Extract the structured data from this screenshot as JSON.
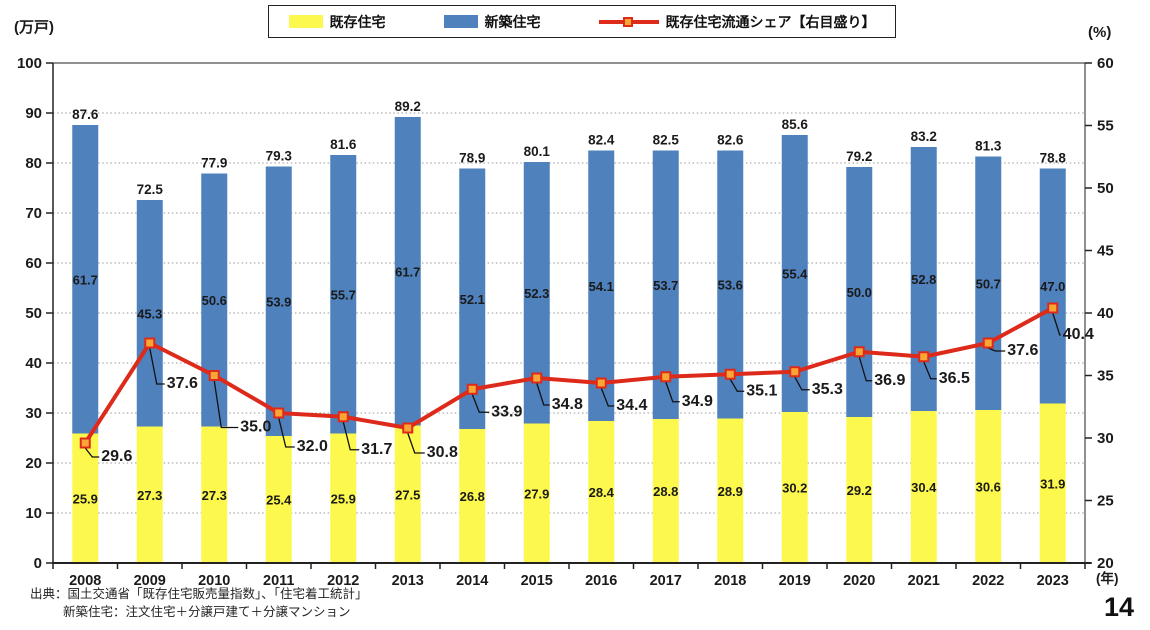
{
  "page_number": "14",
  "axis": {
    "left_unit": "(万戸)",
    "right_unit": "(%)",
    "year_unit": "(年)"
  },
  "legend": {
    "existing": "既存住宅",
    "new": "新築住宅",
    "share": "既存住宅流通シェア【右目盛り】"
  },
  "source": {
    "line1": "出典：国土交通省「既存住宅販売量指数」、「住宅着工統計」",
    "line2": "新築住宅：注文住宅＋分譲戸建て＋分譲マンション"
  },
  "colors": {
    "existing": "#fdf84e",
    "new": "#4f81bd",
    "share_line": "#dd2a1b",
    "marker_fill": "#faa634",
    "share_label": "#dd2a1b",
    "grid": "#9a9a9a",
    "axis": "#222222"
  },
  "chart_data": {
    "type": "bar",
    "stacked": true,
    "categories": [
      "2008",
      "2009",
      "2010",
      "2011",
      "2012",
      "2013",
      "2014",
      "2015",
      "2016",
      "2017",
      "2018",
      "2019",
      "2020",
      "2021",
      "2022",
      "2023"
    ],
    "series": [
      {
        "name": "既存住宅",
        "type": "bar",
        "axis": "left",
        "color_key": "existing",
        "values": [
          25.9,
          27.3,
          27.3,
          25.4,
          25.9,
          27.5,
          26.8,
          27.9,
          28.4,
          28.8,
          28.9,
          30.2,
          29.2,
          30.4,
          30.6,
          31.9
        ]
      },
      {
        "name": "新築住宅",
        "type": "bar",
        "axis": "left",
        "color_key": "new",
        "values": [
          61.7,
          45.3,
          50.6,
          53.9,
          55.7,
          61.7,
          52.1,
          52.3,
          54.1,
          53.7,
          53.6,
          55.4,
          50.0,
          52.8,
          50.7,
          47.0
        ]
      },
      {
        "name": "既存住宅流通シェア【右目盛り】",
        "type": "line",
        "axis": "right",
        "color_key": "share_line",
        "values": [
          29.6,
          37.6,
          35.0,
          32.0,
          31.7,
          30.8,
          33.9,
          34.8,
          34.4,
          34.9,
          35.1,
          35.3,
          36.9,
          36.5,
          37.6,
          40.4
        ]
      }
    ],
    "totals": [
      87.6,
      72.5,
      77.9,
      79.3,
      81.6,
      89.2,
      78.9,
      80.1,
      82.4,
      82.5,
      82.6,
      85.6,
      79.2,
      83.2,
      81.3,
      78.8
    ],
    "left_axis": {
      "min": 0,
      "max": 100,
      "step": 10
    },
    "right_axis": {
      "min": 20,
      "max": 60,
      "step": 5
    },
    "grid": "dotted-horizontal",
    "legend_position": "top"
  }
}
